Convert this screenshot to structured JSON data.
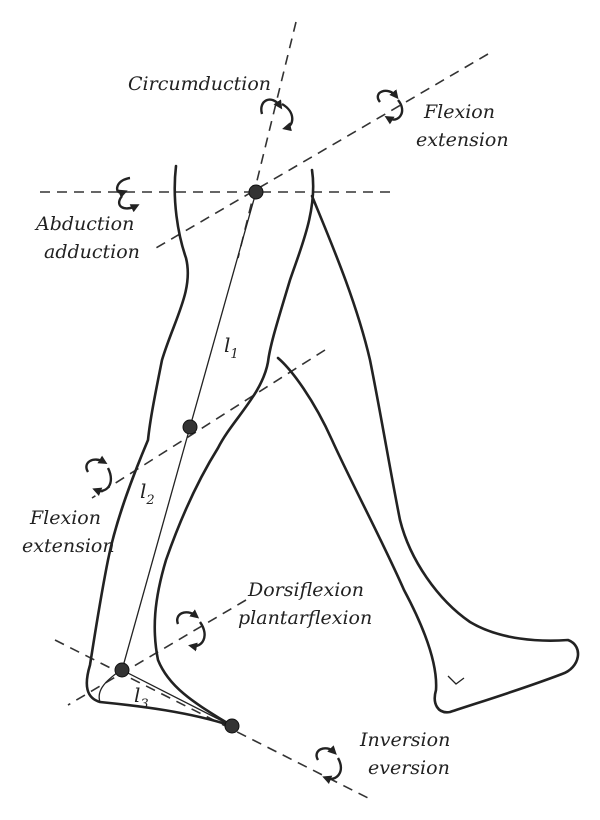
{
  "labels": {
    "circumduction": "Circumduction",
    "hip_flexion_line1": "Flexion",
    "hip_flexion_line2": "extension",
    "abduction_line1": "Abduction",
    "abduction_line2": "adduction",
    "knee_flexion_line1": "Flexion",
    "knee_flexion_line2": "extension",
    "dorsi_line1": "Dorsiflexion",
    "dorsi_line2": "plantarflexion",
    "inversion_line1": "Inversion",
    "inversion_line2": "eversion"
  },
  "segments": {
    "l1": {
      "letter": "l",
      "sub": "1"
    },
    "l2": {
      "letter": "l",
      "sub": "2"
    },
    "l3": {
      "letter": "l",
      "sub": "3"
    }
  },
  "colors": {
    "ink": "#222222",
    "background": "#ffffff"
  }
}
